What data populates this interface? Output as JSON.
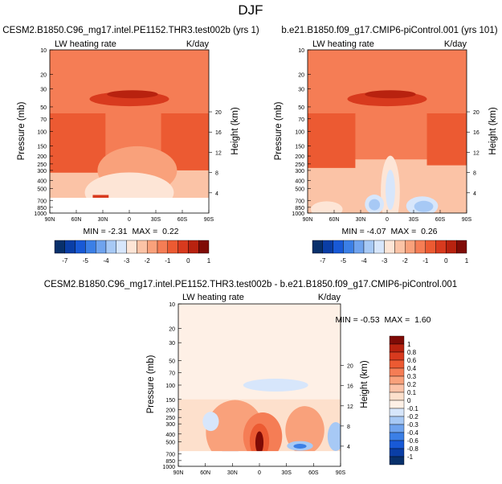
{
  "figure_title": "DJF",
  "colors": {
    "abs": [
      "#08306b",
      "#0a3ea6",
      "#1859d6",
      "#3b7fe6",
      "#6fa3ee",
      "#a7c9f5",
      "#d7e6fb",
      "#fde5d6",
      "#fbc3a6",
      "#f9a17b",
      "#f57d55",
      "#ec5a32",
      "#d83a1e",
      "#b8220f",
      "#7f0b06"
    ],
    "diff": [
      "#08306b",
      "#0a3ea6",
      "#1859d6",
      "#3b7fe6",
      "#6fa3ee",
      "#a7c9f5",
      "#d7e6fb",
      "#fef0e6",
      "#fde0cc",
      "#fcc3a8",
      "#f9a17b",
      "#f57d55",
      "#ec5a32",
      "#d83a1e",
      "#b8220f",
      "#7f0b06"
    ]
  },
  "chart_data": [
    {
      "type": "contour",
      "title": "CESM2.B1850.C96_mg17.intel.PE1152.THR3.test002b (yrs 1)",
      "left_label": "LW heating rate",
      "right_label": "K/day",
      "ylabel": "Pressure (mb)",
      "ylabel_right": "Height (km)",
      "x_ticks": [
        "90N",
        "60N",
        "30N",
        "0",
        "30S",
        "60S",
        "90S"
      ],
      "y_ticks": [
        "10",
        "20",
        "30",
        "50",
        "70",
        "100",
        "150",
        "200",
        "250",
        "300",
        "400",
        "500",
        "700",
        "850",
        "1000"
      ],
      "height_ticks": [
        "20",
        "16",
        "12",
        "8",
        "4"
      ],
      "stats": "MIN = -2.31  MAX =  0.22",
      "colorbar_labels": [
        "-7",
        "-5",
        "-4",
        "-3",
        "-2",
        "-1",
        "0",
        "1"
      ],
      "min": -2.31,
      "max": 0.22
    },
    {
      "type": "contour",
      "title": "b.e21.B1850.f09_g17.CMIP6-piControl.001 (yrs 101)",
      "left_label": "LW heating rate",
      "right_label": "K/day",
      "ylabel": "Pressure (mb)",
      "ylabel_right": "Height (km)",
      "x_ticks": [
        "90N",
        "60N",
        "30N",
        "0",
        "30S",
        "60S",
        "90S"
      ],
      "y_ticks": [
        "10",
        "20",
        "30",
        "50",
        "70",
        "100",
        "150",
        "200",
        "250",
        "300",
        "400",
        "500",
        "700",
        "850",
        "1000"
      ],
      "height_ticks": [
        "20",
        "16",
        "12",
        "8",
        "4"
      ],
      "stats": "MIN = -4.07  MAX =  0.26",
      "colorbar_labels": [
        "-7",
        "-5",
        "-4",
        "-3",
        "-2",
        "-1",
        "0",
        "1"
      ],
      "min": -4.07,
      "max": 0.26
    },
    {
      "type": "contour",
      "title": "CESM2.B1850.C96_mg17.intel.PE1152.THR3.test002b - b.e21.B1850.f09_g17.CMIP6-piControl.001",
      "left_label": "LW heating rate",
      "right_label": "K/day",
      "ylabel": "Pressure (mb)",
      "ylabel_right": "Height (km)",
      "x_ticks": [
        "90N",
        "60N",
        "30N",
        "0",
        "30S",
        "60S",
        "90S"
      ],
      "y_ticks": [
        "10",
        "20",
        "30",
        "50",
        "70",
        "100",
        "150",
        "200",
        "250",
        "300",
        "400",
        "500",
        "700",
        "850",
        "1000"
      ],
      "height_ticks": [
        "20",
        "16",
        "12",
        "8",
        "4"
      ],
      "stats": "MIN = -0.53  MAX =  1.60",
      "colorbar_labels": [
        "1",
        "0.8",
        "0.6",
        "0.4",
        "0.3",
        "0.2",
        "0.1",
        "0",
        "-0.1",
        "-0.2",
        "-0.3",
        "-0.4",
        "-0.6",
        "-0.8",
        "-1"
      ],
      "min": -0.53,
      "max": 1.6
    }
  ]
}
